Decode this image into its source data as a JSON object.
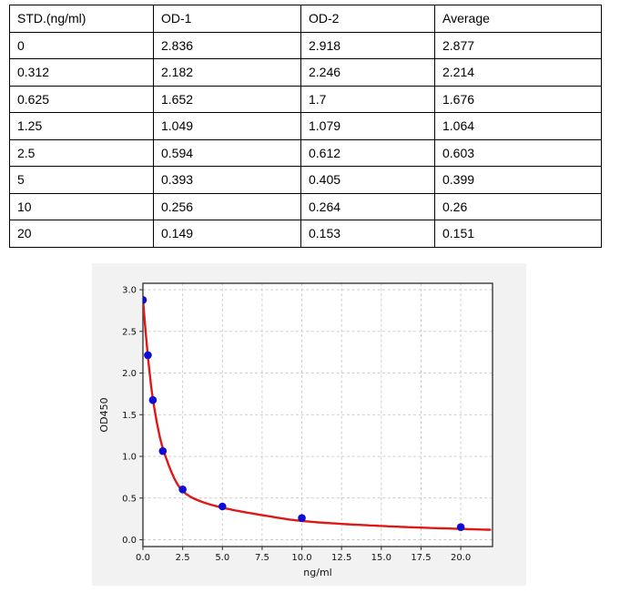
{
  "colors": {
    "page_bg": "#ffffff",
    "table_border": "#000000",
    "figure_bg": "#f2f2f2",
    "plot_bg": "#ffffff",
    "grid": "#c9c9c9",
    "spine": "#3a3a3a",
    "tick_text": "#111111",
    "marker": "#0d0dd6",
    "curve": "#e01717"
  },
  "table": {
    "headers": [
      "STD.(ng/ml)",
      "OD-1",
      "OD-2",
      "Average"
    ],
    "rows": [
      [
        "0",
        "2.836",
        "2.918",
        "2.877"
      ],
      [
        "0.312",
        "2.182",
        "2.246",
        "2.214"
      ],
      [
        "0.625",
        "1.652",
        "1.7",
        "1.676"
      ],
      [
        "1.25",
        "1.049",
        "1.079",
        "1.064"
      ],
      [
        "2.5",
        "0.594",
        "0.612",
        "0.603"
      ],
      [
        "5",
        "0.393",
        "0.405",
        "0.399"
      ],
      [
        "10",
        "0.256",
        "0.264",
        "0.26"
      ],
      [
        "20",
        "0.149",
        "0.153",
        "0.151"
      ]
    ]
  },
  "chart_data": {
    "type": "scatter",
    "title": "",
    "xlabel": "ng/ml",
    "ylabel": "OD450",
    "x": [
      0,
      0.312,
      0.625,
      1.25,
      2.5,
      5,
      10,
      20
    ],
    "y": [
      2.877,
      2.214,
      1.676,
      1.064,
      0.603,
      0.399,
      0.26,
      0.151
    ],
    "xticks": [
      0.0,
      2.5,
      5.0,
      7.5,
      10.0,
      12.5,
      15.0,
      17.5,
      20.0
    ],
    "yticks": [
      0.0,
      0.5,
      1.0,
      1.5,
      2.0,
      2.5,
      3.0
    ],
    "xlim": [
      0,
      22
    ],
    "ylim": [
      -0.082,
      3.077
    ],
    "grid": true,
    "legend": null,
    "fit_curve_points": [
      [
        0,
        2.88
      ],
      [
        0.312,
        2.2
      ],
      [
        0.625,
        1.69
      ],
      [
        1.25,
        1.1
      ],
      [
        2.5,
        0.585
      ],
      [
        3.5,
        0.47
      ],
      [
        5,
        0.385
      ],
      [
        7.5,
        0.295
      ],
      [
        10,
        0.225
      ],
      [
        12.5,
        0.19
      ],
      [
        15,
        0.165
      ],
      [
        17.5,
        0.145
      ],
      [
        20,
        0.13
      ],
      [
        22,
        0.118
      ]
    ]
  }
}
